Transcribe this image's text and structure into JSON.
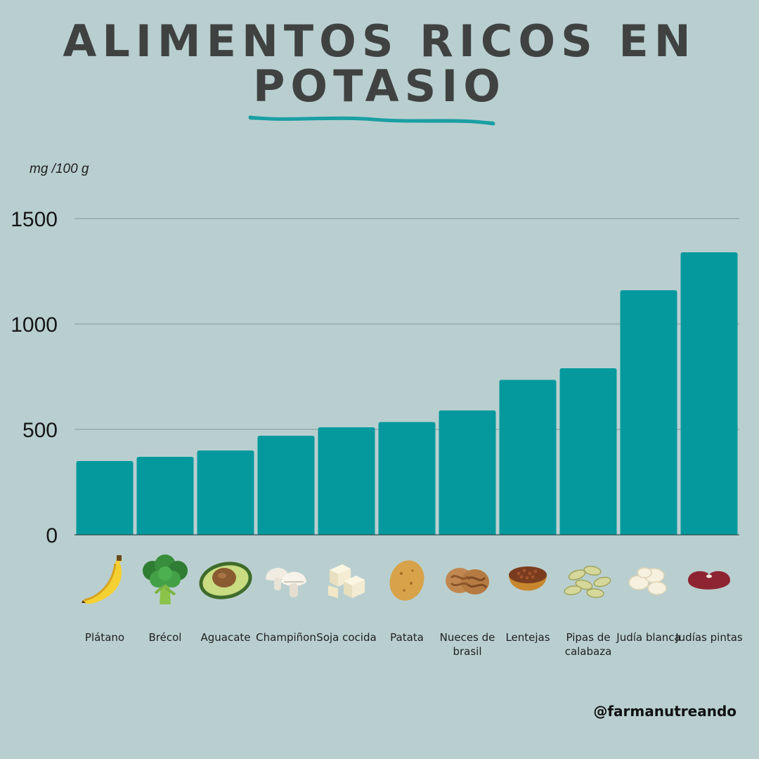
{
  "title": {
    "line1": "ALIMENTOS RICOS EN",
    "line2": "POTASIO"
  },
  "handle": "@farmanutreando",
  "colors": {
    "background": "#b9cfcf",
    "bar": "#05999e",
    "title": "#404242",
    "accent": "#1a9fa4"
  },
  "chart_data": {
    "type": "bar",
    "ylabel": "mg /100 g",
    "ylim": [
      0,
      1500
    ],
    "yticks": [
      0,
      500,
      1000,
      1500
    ],
    "grid": true,
    "categories": [
      "Plátano",
      "Brécol",
      "Aguacate",
      "Champiñon",
      "Soja cocida",
      "Patata",
      "Nueces de brasil",
      "Lentejas",
      "Pipas de calabaza",
      "Judía blanca",
      "Judías pintas"
    ],
    "values": [
      350,
      370,
      400,
      470,
      510,
      535,
      590,
      735,
      790,
      1160,
      1340
    ]
  },
  "icons": [
    "banana-icon",
    "broccoli-icon",
    "avocado-icon",
    "mushroom-icon",
    "tofu-icon",
    "potato-icon",
    "walnut-icon",
    "lentils-icon",
    "pumpkin-seeds-icon",
    "white-bean-icon",
    "pinto-bean-icon"
  ]
}
